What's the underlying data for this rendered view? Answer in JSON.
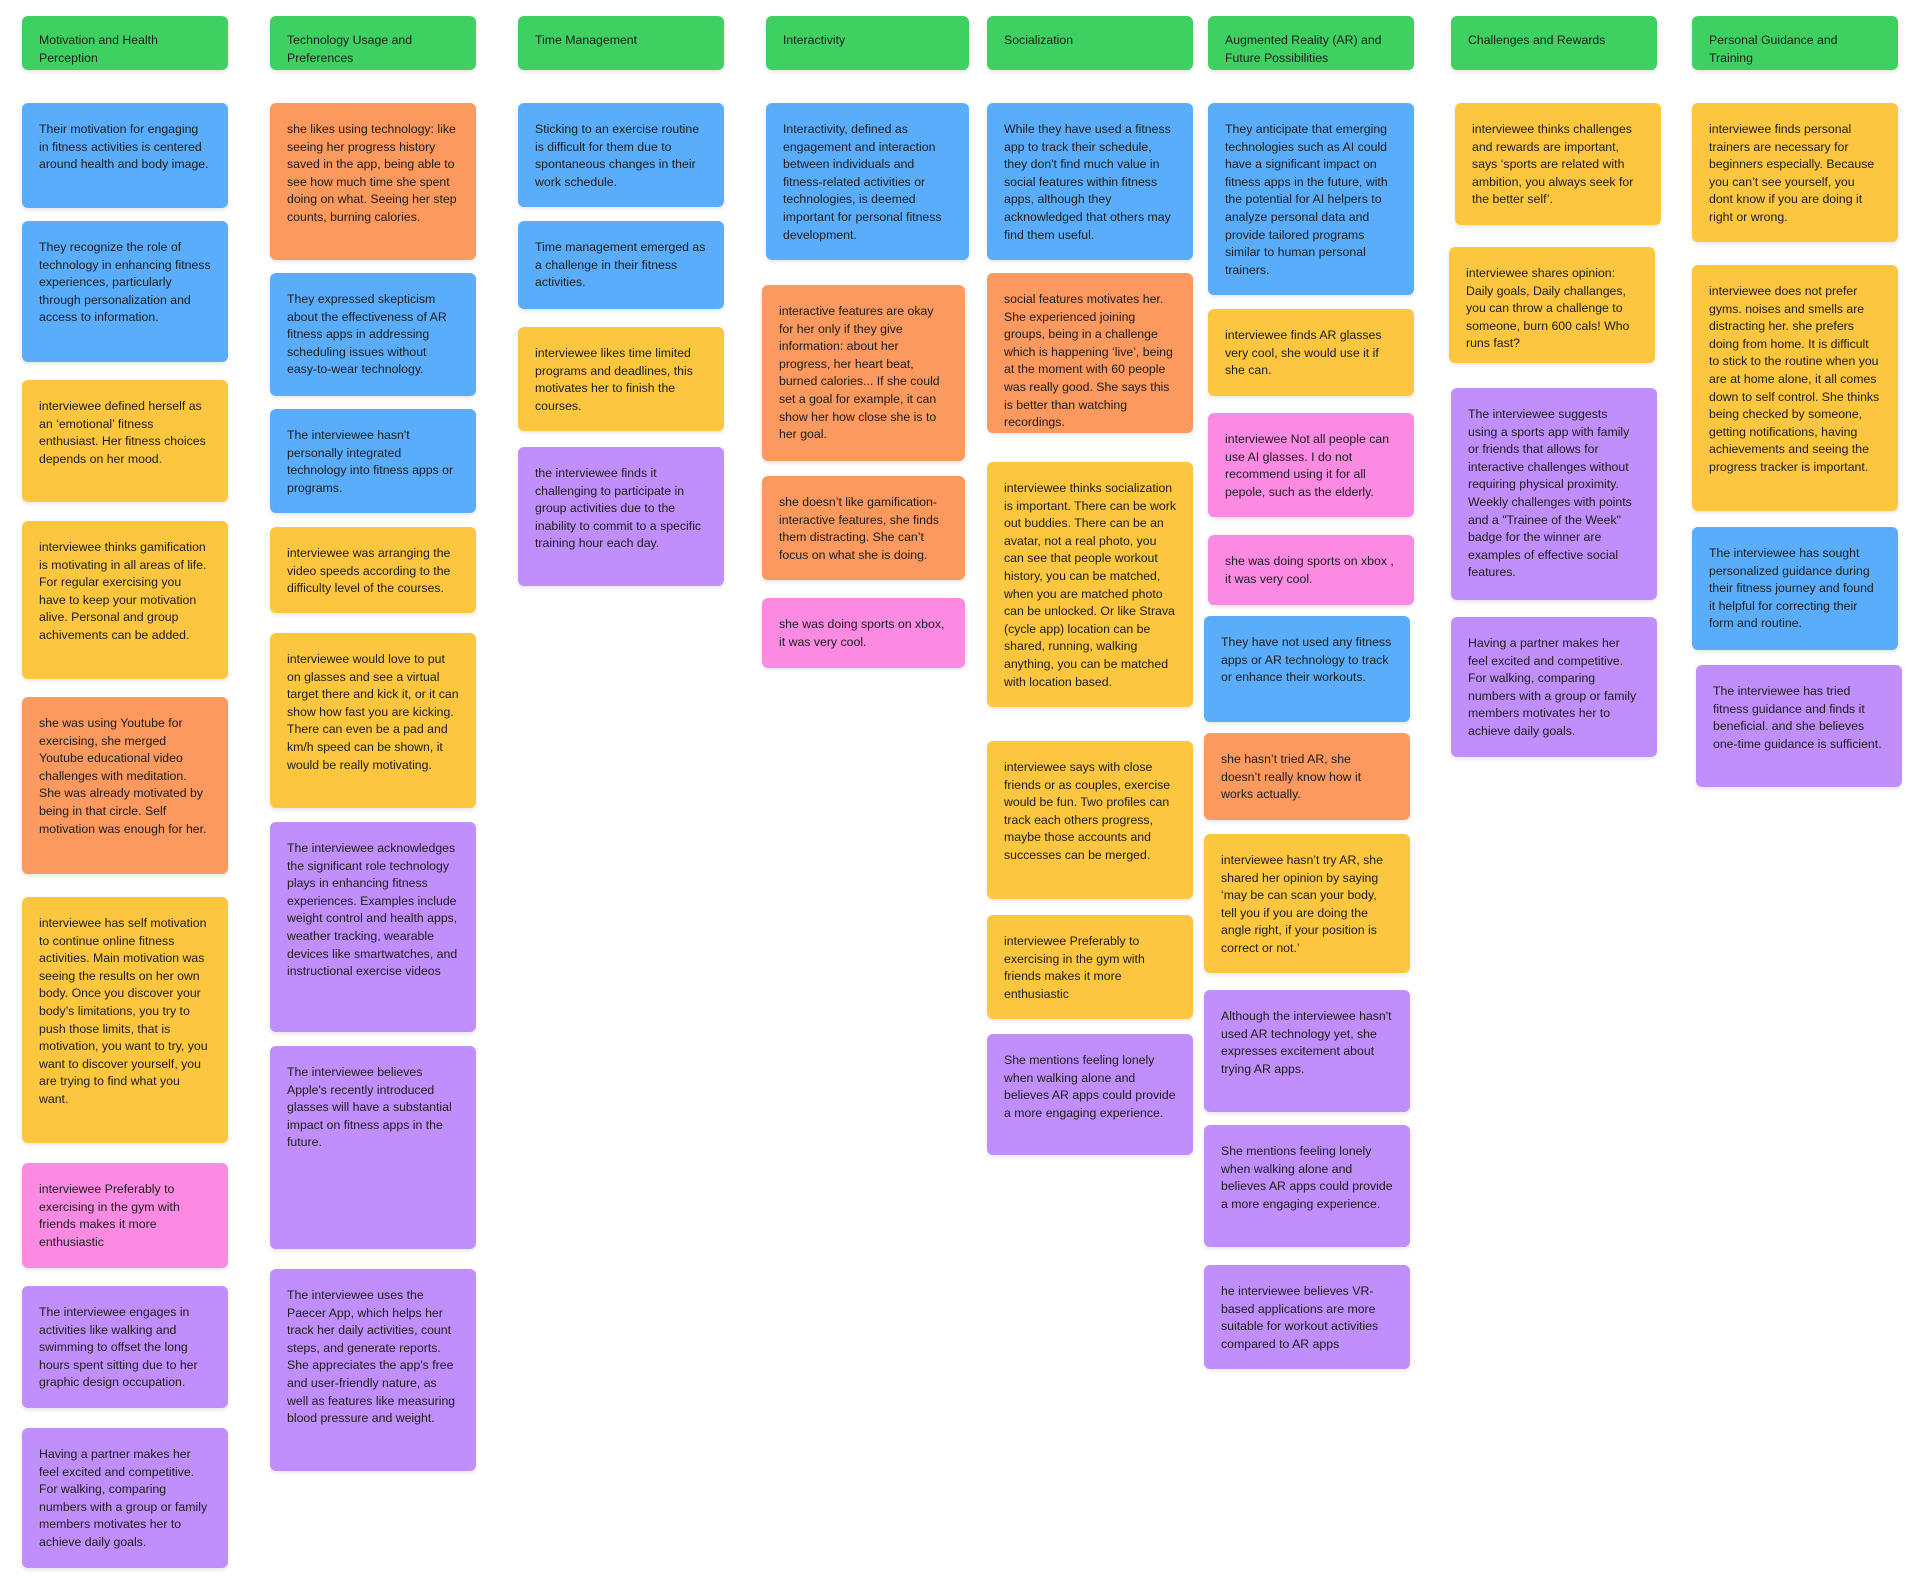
{
  "colors": {
    "green": "#3ed161",
    "blue": "#5aadfb",
    "orange": "#fb995e",
    "yellow": "#fcc63f",
    "purple": "#c08ffb",
    "pink": "#fb8ae2"
  },
  "columns": [
    {
      "header": "Motivation and Health Perception",
      "notes": [
        {
          "color": "blue",
          "text": "Their motivation for engaging in fitness activities is centered around health and body image."
        },
        {
          "color": "blue",
          "text": "They recognize the role of technology in enhancing fitness experiences, particularly through personalization and access to information."
        },
        {
          "color": "yellow",
          "text": "interviewee defined herself as an ‘emotional’ fitness enthusiast. Her fitness choices depends on her mood."
        },
        {
          "color": "yellow",
          "text": "interviewee thinks gamification is motivating in all areas of life. For regular exercising you have to keep your motivation alive. Personal and group achivements can be added."
        },
        {
          "color": "orange",
          "text": "she was using Youtube for exercising, she merged Youtube educational video challenges with meditation. She was already motivated by being in that circle. Self motivation was enough for her."
        },
        {
          "color": "yellow",
          "text": "interviewee has self motivation to continue online fitness activities. Main motivation was seeing the results on her own body. Once you discover your body’s limitations, you try to push those limits, that is motivation, you want to try, you want to discover yourself, you are trying to find what you want."
        },
        {
          "color": "pink",
          "text": "interviewee Preferably to exercising in the gym with friends makes it more enthusiastic"
        },
        {
          "color": "purple",
          "text": "The interviewee engages in activities like walking and swimming to offset the long hours spent sitting due to her graphic design occupation."
        },
        {
          "color": "purple",
          "text": "Having a partner makes her feel excited and competitive. For walking, comparing numbers with a group or family members motivates her to achieve daily goals."
        }
      ]
    },
    {
      "header": "Technology Usage and Preferences",
      "notes": [
        {
          "color": "orange",
          "text": "she likes using technology: like seeing her progress history saved in the app, being able to see how much time she spent doing on what. Seeing her step counts, burning calories."
        },
        {
          "color": "blue",
          "text": "They expressed skepticism about the effectiveness of AR fitness apps in addressing scheduling issues without easy-to-wear technology."
        },
        {
          "color": "blue",
          "text": "The interviewee hasn't personally integrated technology into fitness apps or programs."
        },
        {
          "color": "yellow",
          "text": "interviewee was arranging the video speeds according to the difficulty level of the courses."
        },
        {
          "color": "yellow",
          "text": "interviewee would love to put on glasses and see a virtual target there and kick it, or it can show how fast you are kicking. There can even be a pad and km/h speed can be shown, it would be really motivating."
        },
        {
          "color": "purple",
          "text": "The interviewee acknowledges the significant role technology plays in enhancing fitness experiences. Examples include weight control and health apps, weather tracking, wearable devices like smartwatches, and instructional exercise videos"
        },
        {
          "color": "purple",
          "text": "The interviewee believes Apple's recently introduced glasses will have a substantial impact on fitness apps in the future."
        },
        {
          "color": "purple",
          "text": "The interviewee uses the Paecer App, which helps her track her daily activities, count steps, and generate reports. She appreciates the app's free and user-friendly nature, as well as features like measuring blood pressure and weight."
        }
      ]
    },
    {
      "header": "Time Management",
      "notes": [
        {
          "color": "blue",
          "text": "Sticking to an exercise routine is difficult for them due to spontaneous changes in their work schedule."
        },
        {
          "color": "blue",
          "text": "Time management emerged as a challenge in their fitness activities."
        },
        {
          "color": "yellow",
          "text": "interviewee likes time limited programs and deadlines, this motivates her to finish the courses."
        },
        {
          "color": "purple",
          "text": "the interviewee finds it challenging to participate in group activities due to the inability to commit to a specific training hour each day."
        }
      ]
    },
    {
      "header": "Interactivity",
      "notes": [
        {
          "color": "blue",
          "text": "Interactivity, defined as engagement and interaction between individuals and fitness-related activities or technologies, is deemed important for personal fitness development."
        },
        {
          "color": "orange",
          "text": "interactive features are okay for her only if they give information: about her progress, her heart beat, burned calories... If she could set a goal for example, it can show her how close she is to her goal."
        },
        {
          "color": "orange",
          "text": "she doesn’t like gamification-interactive features, she finds them distracting. She can’t focus on what she is doing."
        },
        {
          "color": "pink",
          "text": "she was doing sports on xbox, it was very cool."
        }
      ]
    },
    {
      "header": "Socialization",
      "notes": [
        {
          "color": "blue",
          "text": "While they have used a fitness app to track their schedule, they don't find much value in social features within fitness apps, although they acknowledged that others may find them useful."
        },
        {
          "color": "orange",
          "text": "social features motivates her. She experienced joining groups, being in a challenge which is happening ‘live’, being at the moment with 60 people was really good. She says this is better than watching recordings."
        },
        {
          "color": "yellow",
          "text": "interviewee thinks socialization is important. There can be work out buddies. There can be an avatar, not a real photo, you can see that people workout history, you can be matched, when you are matched photo can be unlocked. Or like Strava (cycle app) location can be shared, running, walking anything, you can be matched with location based."
        },
        {
          "color": "yellow",
          "text": "interviewee says with close friends or as couples, exercise would be fun. Two profiles can track each others progress, maybe those accounts and successes can be merged."
        },
        {
          "color": "yellow",
          "text": "interviewee Preferably to exercising in the gym with friends makes it more enthusiastic"
        },
        {
          "color": "purple",
          "text": "She mentions feeling lonely when walking alone and believes AR apps could provide a more engaging experience."
        }
      ]
    },
    {
      "header": "Augmented Reality (AR) and Future Possibilities",
      "notes": [
        {
          "color": "blue",
          "text": "They anticipate that emerging technologies such as AI could have a significant impact on fitness apps in the future, with the potential for AI helpers to analyze personal data and provide tailored programs similar to human personal trainers."
        },
        {
          "color": "yellow",
          "text": "interviewee finds AR glasses very cool, she would use it if she can."
        },
        {
          "color": "pink",
          "text": "interviewee Not all people can use AI glasses. I do not recommend using it for all pepole, such as the elderly."
        },
        {
          "color": "pink",
          "text": "she was doing sports on xbox , it was very cool."
        },
        {
          "color": "blue",
          "text": "They have not used any fitness apps or AR technology to track or enhance their workouts."
        },
        {
          "color": "orange",
          "text": "she hasn’t tried AR, she doesn’t really know how it works actually."
        },
        {
          "color": "yellow",
          "text": "interviewee hasn’t try AR, she shared her opinion by saying ‘may be can scan your body, tell you if you are doing the angle right, if your position is correct or not.’"
        },
        {
          "color": "purple",
          "text": "Although the interviewee hasn't used AR technology yet, she expresses excitement about trying AR apps."
        },
        {
          "color": "purple",
          "text": "She mentions feeling lonely when walking alone and believes AR apps could provide a more engaging experience."
        },
        {
          "color": "purple",
          "text": "he interviewee believes VR-based applications are more suitable for workout activities compared to AR apps"
        }
      ]
    },
    {
      "header": "Challenges and Rewards",
      "notes": [
        {
          "color": "yellow",
          "text": "interviewee thinks challenges and rewards are important, says ‘sports are related with ambition, you always seek for the better self’."
        },
        {
          "color": "yellow",
          "text": "interviewee shares opinion: Daily goals, Daily challanges, you can throw a challenge to someone, burn 600 cals! Who runs fast?"
        },
        {
          "color": "purple",
          "text": "The interviewee suggests using a sports app with family or friends that allows for interactive challenges without requiring physical proximity. Weekly challenges with points and a \"Trainee of the Week\" badge for the winner are examples of effective social features."
        },
        {
          "color": "purple",
          "text": "Having a partner makes her feel excited and competitive. For walking, comparing numbers with a group or family members motivates her to achieve daily goals."
        }
      ]
    },
    {
      "header": "Personal Guidance and Training",
      "notes": [
        {
          "color": "yellow",
          "text": "interviewee finds personal trainers are necessary for beginners especially. Because you can’t see yourself, you dont know if you are doing it right or wrong."
        },
        {
          "color": "yellow",
          "text": "interviewee does not prefer gyms. noises and smells are distracting her. she prefers doing from home. It is difficult to stick to the routine when you are at home alone, it all comes down to self control. She thinks being checked by someone, getting notifications, having achievements and seeing the progress tracker is important."
        },
        {
          "color": "blue",
          "text": "The interviewee has sought personalized guidance during their fitness journey and found it helpful for correcting their form and routine."
        },
        {
          "color": "purple",
          "text": "The interviewee has tried fitness guidance and finds it beneficial. and she believes one-time guidance is sufficient."
        }
      ]
    }
  ]
}
